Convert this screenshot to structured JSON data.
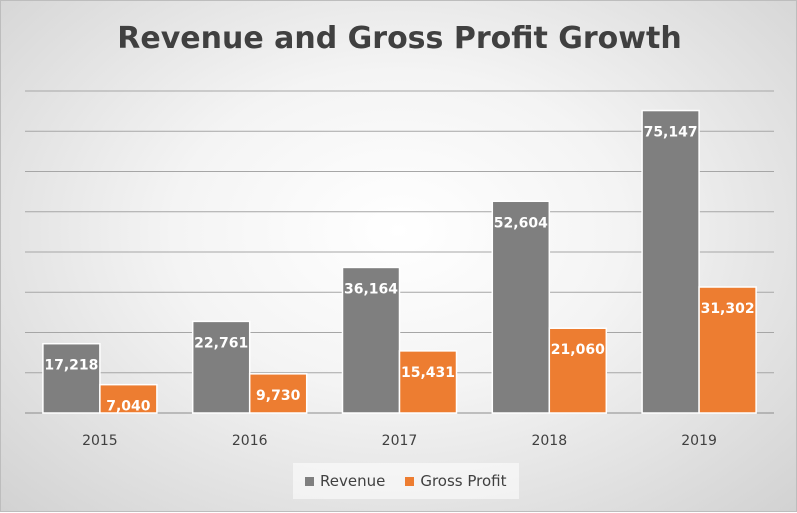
{
  "chart_data": {
    "type": "bar",
    "title": "Revenue and Gross Profit Growth",
    "categories": [
      "2015",
      "2016",
      "2017",
      "2018",
      "2019"
    ],
    "series": [
      {
        "name": "Revenue",
        "values": [
          17218,
          22761,
          36164,
          52604,
          75147
        ],
        "labels": [
          "17,218",
          "22,761",
          "36,164",
          "52,604",
          "75,147"
        ],
        "color": "#7f7f7f"
      },
      {
        "name": "Gross Profit",
        "values": [
          7040,
          9730,
          15431,
          21060,
          31302
        ],
        "labels": [
          "7,040",
          "9,730",
          "15,431",
          "21,060",
          "31,302"
        ],
        "color": "#ed7d31"
      }
    ],
    "ylim": [
      0,
      80000
    ],
    "grid": true,
    "legend_position": "bottom",
    "xlabel": "",
    "ylabel": ""
  }
}
